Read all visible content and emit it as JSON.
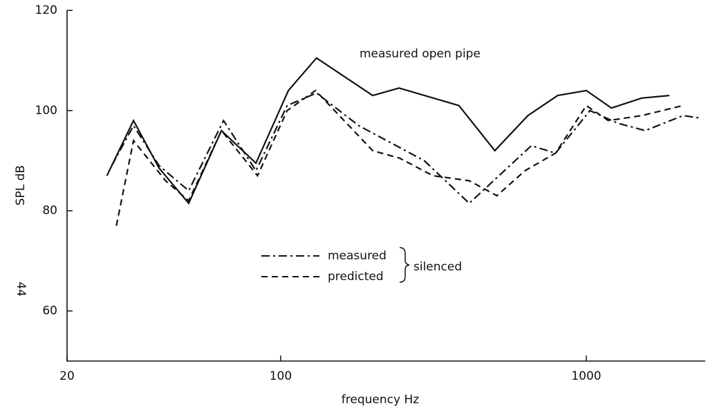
{
  "chart_data": {
    "type": "line",
    "x_label": "frequency Hz",
    "y_label": "SPL dB",
    "page_number": "44",
    "legend_group": "silenced",
    "log_x": true,
    "xlim": [
      20,
      2450
    ],
    "ylim": [
      50,
      120
    ],
    "xticks": [
      20,
      100,
      1000
    ],
    "yticks": [
      60,
      80,
      100,
      120
    ],
    "series": [
      {
        "name": "measured open pipe",
        "color": "#111111",
        "style": "solid",
        "x": [
          27,
          33,
          40,
          50,
          64,
          83,
          106,
          131,
          200,
          244,
          383,
          502,
          644,
          806,
          1000,
          1208,
          1518,
          1870
        ],
        "values": [
          87,
          98,
          88.5,
          81.5,
          96,
          89.5,
          104,
          110.5,
          103,
          104.5,
          101,
          92,
          99,
          103,
          104,
          100.5,
          102.5,
          103
        ]
      },
      {
        "name": "measured",
        "color": "#111111",
        "style": "dashdot",
        "x": [
          28,
          33,
          40,
          50,
          65,
          83,
          105,
          131,
          180,
          295,
          414,
          661,
          793,
          1028,
          1265,
          1559,
          2074,
          2360
        ],
        "values": [
          89,
          97,
          89,
          84,
          98,
          88,
          101,
          103.5,
          97,
          90,
          81.5,
          93,
          91.5,
          100,
          97.5,
          96,
          99,
          98.5
        ]
      },
      {
        "name": "predicted",
        "color": "#111111",
        "style": "dashed",
        "x": [
          29,
          33,
          42,
          50,
          64,
          84,
          105,
          130,
          200,
          245,
          315,
          414,
          510,
          630,
          793,
          1000,
          1180,
          1520,
          2070
        ],
        "values": [
          77,
          94,
          86,
          82,
          96,
          87,
          100,
          104,
          92,
          90.5,
          87,
          86,
          83,
          88,
          91.5,
          101,
          98,
          99,
          101
        ]
      }
    ]
  }
}
